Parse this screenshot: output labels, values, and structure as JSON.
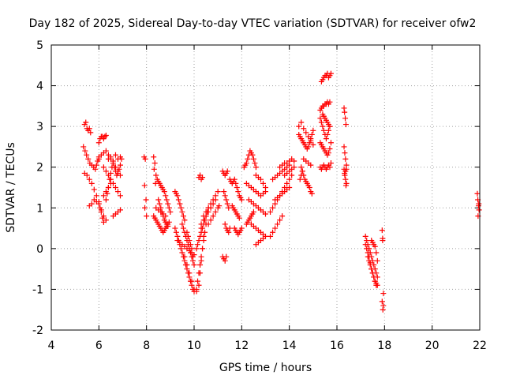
{
  "chart_data": {
    "type": "scatter",
    "title": "Day 182 of 2025, Sidereal Day-to-day VTEC variation (SDTVAR) for receiver ofw2",
    "xlabel": "GPS time / hours",
    "ylabel": "SDTVAR / TECUs",
    "xlim": [
      4,
      22
    ],
    "ylim": [
      -2,
      5
    ],
    "xticks": [
      "4",
      "6",
      "8",
      "10",
      "12",
      "14",
      "16",
      "18",
      "20",
      "22"
    ],
    "yticks": [
      "-2",
      "-1",
      "0",
      "1",
      "2",
      "3",
      "4",
      "5"
    ],
    "grid": true,
    "marker": "+",
    "colors": {
      "marker": "#ff0000",
      "grid": "#a0a0a0",
      "axis": "#000000"
    },
    "series": [
      {
        "x": [
          5.4,
          5.45,
          5.5,
          5.55,
          5.6,
          5.65,
          5.35,
          5.42,
          5.48,
          5.55,
          5.62,
          5.7,
          5.78,
          5.85,
          5.9,
          5.95,
          6.0,
          5.4,
          5.5,
          5.6,
          5.7,
          5.8,
          5.9,
          6.0,
          6.05,
          6.1,
          6.15,
          6.2,
          5.6,
          5.7,
          5.8,
          5.9,
          6.0,
          6.1,
          6.2,
          6.3,
          6.0,
          6.05,
          6.1,
          6.15,
          6.2,
          6.25,
          6.3,
          6.2,
          6.3,
          6.4,
          6.5,
          6.6,
          6.7,
          6.8,
          6.9,
          6.4,
          6.5,
          6.6,
          6.7,
          6.8,
          6.9,
          6.3,
          6.35,
          6.4,
          6.45,
          6.5,
          6.55,
          6.6,
          6.65,
          6.7,
          6.75,
          6.8,
          6.85,
          6.9,
          6.95,
          6.6,
          6.7,
          6.8,
          6.9,
          6.0,
          6.1,
          6.2,
          6.3,
          6.4,
          6.5,
          6.6,
          6.7,
          6.8,
          6.9,
          6.2,
          6.3,
          6.4,
          6.5
        ],
        "y": [
          3.05,
          3.1,
          2.95,
          2.9,
          2.95,
          2.85,
          2.5,
          2.4,
          2.3,
          2.2,
          2.1,
          2.05,
          2.0,
          1.95,
          2.05,
          2.15,
          2.25,
          1.85,
          1.8,
          1.7,
          1.6,
          1.45,
          1.3,
          1.15,
          1.0,
          0.9,
          0.75,
          0.65,
          1.05,
          1.1,
          1.2,
          1.15,
          1.1,
          0.95,
          0.8,
          0.7,
          2.6,
          2.7,
          2.75,
          2.75,
          2.7,
          2.75,
          2.78,
          2.0,
          1.9,
          1.8,
          1.7,
          1.6,
          1.5,
          1.4,
          1.3,
          2.2,
          2.25,
          2.15,
          2.3,
          2.2,
          2.25,
          1.2,
          1.35,
          1.5,
          1.7,
          1.85,
          2.0,
          2.1,
          2.0,
          1.9,
          1.8,
          1.85,
          1.95,
          2.05,
          2.2,
          0.8,
          0.85,
          0.9,
          0.95,
          2.2,
          2.3,
          2.35,
          2.4,
          2.3,
          2.2,
          2.1,
          2.0,
          1.9,
          1.8,
          1.3,
          1.4,
          1.5,
          1.6
        ]
      },
      {
        "x": [
          7.9,
          7.95,
          7.92,
          7.98,
          7.93,
          8.0,
          8.3,
          8.35,
          8.32,
          8.4,
          8.45,
          8.38,
          8.5,
          8.55,
          8.6,
          8.65,
          8.7,
          8.75,
          8.8,
          8.85,
          8.9,
          8.95,
          9.0,
          8.5,
          8.55,
          8.6,
          8.65,
          8.7,
          8.75,
          8.8,
          8.85,
          8.9,
          8.3,
          8.35,
          8.4,
          8.45,
          8.5,
          8.55,
          8.6,
          8.65,
          8.7,
          8.75,
          8.8,
          8.85,
          8.9,
          8.95,
          8.4,
          8.5,
          8.6,
          8.7,
          8.8,
          9.2,
          9.25,
          9.3,
          9.35,
          9.4,
          9.45,
          9.5,
          9.55,
          9.6,
          9.2,
          9.25,
          9.3,
          9.35,
          9.4,
          9.45,
          9.5,
          9.55,
          9.6,
          9.65,
          9.7,
          9.75,
          9.8,
          9.85,
          9.9,
          9.95,
          10.0,
          9.3,
          9.4,
          9.5,
          9.6,
          9.7,
          9.8,
          9.9,
          10.0,
          9.5,
          9.55,
          9.6,
          9.65,
          9.7,
          9.75,
          9.8,
          9.85,
          9.9,
          9.95,
          9.7,
          9.75,
          9.8,
          9.85,
          9.9,
          9.95,
          10.0,
          9.6,
          9.7,
          9.8,
          9.9,
          10.0,
          10.1,
          10.1,
          10.15,
          10.2,
          10.25,
          10.3,
          10.35,
          10.4,
          10.45,
          10.5,
          10.1,
          10.15,
          10.2,
          10.25,
          10.3,
          10.35,
          10.4,
          10.45,
          10.5,
          10.55,
          10.6,
          10.3,
          10.4,
          10.5,
          10.6,
          10.7,
          10.8,
          10.9,
          10.4,
          10.5,
          10.6,
          10.7,
          10.8,
          10.9,
          11.0,
          10.6,
          10.7,
          10.8,
          10.9,
          11.0,
          11.05,
          10.2,
          10.25,
          10.3,
          10.35,
          10.3,
          10.2,
          10.25,
          10.3,
          10.35,
          10.4
        ],
        "y": [
          2.25,
          2.2,
          1.55,
          1.2,
          1.0,
          0.8,
          2.25,
          2.1,
          1.95,
          1.8,
          1.7,
          1.6,
          1.65,
          1.6,
          1.55,
          1.5,
          1.45,
          1.4,
          1.3,
          1.2,
          1.1,
          1.0,
          0.9,
          1.2,
          1.1,
          1.0,
          0.9,
          0.8,
          0.7,
          0.65,
          0.6,
          0.55,
          0.8,
          0.75,
          0.7,
          0.65,
          0.6,
          0.55,
          0.5,
          0.45,
          0.4,
          0.45,
          0.5,
          0.55,
          0.6,
          0.65,
          1.0,
          0.95,
          0.9,
          0.85,
          0.8,
          1.4,
          1.35,
          1.3,
          1.2,
          1.1,
          1.0,
          0.9,
          0.8,
          0.7,
          0.5,
          0.4,
          0.3,
          0.2,
          0.1,
          0.0,
          -0.1,
          -0.2,
          -0.3,
          -0.4,
          -0.5,
          -0.6,
          -0.7,
          -0.8,
          -0.9,
          -1.0,
          -1.05,
          0.2,
          0.15,
          0.1,
          0.05,
          0.0,
          -0.05,
          -0.1,
          -0.15,
          0.6,
          0.5,
          0.4,
          0.3,
          0.2,
          0.1,
          0.0,
          -0.1,
          -0.2,
          -0.3,
          0.4,
          0.3,
          0.2,
          0.1,
          0.0,
          -0.2,
          -0.4,
          -0.2,
          -0.4,
          -0.6,
          -0.8,
          -1.0,
          -1.05,
          -1.0,
          -0.8,
          -0.6,
          -0.4,
          -0.2,
          0.0,
          0.2,
          0.4,
          0.6,
          0.0,
          0.1,
          0.2,
          0.3,
          0.4,
          0.5,
          0.6,
          0.7,
          0.8,
          0.9,
          1.0,
          0.6,
          0.7,
          0.8,
          0.9,
          1.0,
          1.1,
          1.2,
          0.8,
          0.9,
          1.0,
          1.1,
          1.2,
          1.3,
          1.4,
          0.6,
          0.7,
          0.8,
          0.9,
          1.0,
          1.05,
          1.75,
          1.8,
          1.7,
          1.75,
          0.5,
          -0.9,
          -0.6,
          -0.3,
          0.0,
          0.3
        ]
      },
      {
        "x": [
          11.2,
          11.25,
          11.3,
          11.35,
          11.4,
          11.25,
          11.3,
          11.35,
          11.4,
          11.45,
          11.3,
          11.35,
          11.4,
          11.45,
          11.5,
          11.2,
          11.25,
          11.3,
          11.35,
          11.5,
          11.55,
          11.6,
          11.65,
          11.7,
          11.75,
          11.8,
          11.85,
          11.9,
          11.95,
          12.0,
          11.6,
          11.65,
          11.7,
          11.75,
          11.8,
          11.85,
          11.9,
          11.7,
          11.75,
          11.8,
          11.85,
          11.9,
          11.95,
          12.0,
          12.1,
          12.15,
          12.2,
          12.25,
          12.3,
          12.35,
          12.4,
          12.45,
          12.5,
          12.55,
          12.6,
          12.2,
          12.3,
          12.4,
          12.5,
          12.6,
          12.7,
          12.8,
          12.9,
          13.0,
          12.3,
          12.4,
          12.5,
          12.6,
          12.7,
          12.8,
          12.9,
          13.0,
          12.4,
          12.5,
          12.6,
          12.7,
          12.8,
          12.9,
          13.0,
          12.6,
          12.7,
          12.8,
          12.9,
          12.6,
          12.7,
          12.8,
          12.9,
          13.0,
          12.2,
          12.25,
          12.3,
          12.35,
          12.4,
          12.45,
          12.5
        ],
        "y": [
          1.9,
          1.85,
          1.8,
          1.85,
          1.9,
          1.4,
          1.3,
          1.2,
          1.1,
          1.0,
          0.6,
          0.5,
          0.45,
          0.4,
          0.5,
          -0.2,
          -0.25,
          -0.3,
          -0.2,
          1.7,
          1.65,
          1.6,
          1.65,
          1.7,
          1.6,
          1.5,
          1.4,
          1.3,
          1.25,
          1.2,
          1.05,
          1.0,
          0.95,
          0.9,
          0.85,
          0.8,
          0.75,
          0.5,
          0.45,
          0.4,
          0.35,
          0.4,
          0.45,
          0.5,
          2.0,
          2.05,
          2.1,
          2.2,
          2.3,
          2.4,
          2.35,
          2.3,
          2.2,
          2.1,
          2.0,
          1.6,
          1.55,
          1.5,
          1.45,
          1.4,
          1.35,
          1.3,
          1.35,
          1.4,
          1.2,
          1.15,
          1.1,
          1.05,
          1.0,
          0.95,
          0.9,
          0.85,
          0.6,
          0.55,
          0.5,
          0.45,
          0.4,
          0.35,
          0.3,
          0.1,
          0.15,
          0.2,
          0.25,
          1.8,
          1.75,
          1.7,
          1.6,
          1.5,
          0.6,
          0.65,
          0.7,
          0.75,
          0.8,
          0.85,
          0.9
        ]
      },
      {
        "x": [
          13.2,
          13.3,
          13.4,
          13.5,
          13.6,
          13.7,
          13.8,
          13.9,
          14.0,
          14.1,
          13.3,
          13.4,
          13.5,
          13.6,
          13.7,
          13.8,
          13.9,
          14.0,
          13.4,
          13.5,
          13.6,
          13.7,
          13.8,
          13.9,
          14.0,
          13.2,
          13.3,
          13.4,
          13.5,
          13.6,
          13.7,
          13.6,
          13.7,
          13.8,
          13.9,
          14.0,
          14.1,
          14.2,
          13.8,
          13.9,
          14.0,
          14.1,
          14.2
        ],
        "y": [
          0.9,
          1.0,
          1.1,
          1.2,
          1.3,
          1.4,
          1.5,
          1.6,
          1.7,
          1.8,
          1.7,
          1.75,
          1.8,
          1.85,
          1.9,
          1.95,
          2.0,
          2.05,
          1.2,
          1.25,
          1.3,
          1.35,
          1.4,
          1.45,
          1.5,
          0.3,
          0.4,
          0.5,
          0.6,
          0.7,
          0.8,
          2.0,
          2.05,
          2.1,
          2.1,
          2.15,
          2.2,
          2.15,
          1.8,
          1.85,
          1.9,
          1.95,
          2.0
        ]
      },
      {
        "x": [
          14.4,
          14.45,
          14.5,
          14.55,
          14.6,
          14.65,
          14.7,
          14.75,
          14.8,
          14.85,
          14.9,
          14.95,
          15.0,
          14.4,
          14.5,
          14.6,
          14.7,
          14.8,
          14.9,
          15.0,
          14.5,
          14.55,
          14.6,
          14.65,
          14.7,
          14.75,
          14.8,
          14.85,
          14.9,
          14.95,
          14.6,
          14.7,
          14.8,
          14.9,
          14.45,
          14.5,
          14.55
        ],
        "y": [
          2.8,
          2.75,
          2.7,
          2.65,
          2.6,
          2.55,
          2.5,
          2.45,
          2.5,
          2.6,
          2.7,
          2.8,
          2.9,
          3.0,
          3.1,
          2.95,
          2.85,
          2.75,
          2.65,
          2.55,
          2.0,
          1.9,
          1.8,
          1.7,
          1.65,
          1.6,
          1.55,
          1.5,
          1.4,
          1.35,
          2.2,
          2.15,
          2.1,
          2.05,
          1.7,
          1.8,
          1.9
        ]
      },
      {
        "x": [
          15.3,
          15.35,
          15.4,
          15.45,
          15.5,
          15.55,
          15.6,
          15.65,
          15.7,
          15.35,
          15.4,
          15.45,
          15.5,
          15.55,
          15.6,
          15.65,
          15.7,
          15.75,
          15.3,
          15.35,
          15.4,
          15.45,
          15.5,
          15.55,
          15.6,
          15.65,
          15.7,
          15.75,
          15.3,
          15.35,
          15.4,
          15.45,
          15.5,
          15.55,
          15.6,
          15.65,
          15.7,
          15.3,
          15.35,
          15.4,
          15.45,
          15.5,
          15.55,
          15.6,
          15.65,
          15.7,
          15.75,
          15.4,
          15.45,
          15.5,
          15.55,
          15.6,
          15.65,
          15.7
        ],
        "y": [
          3.4,
          3.45,
          3.5,
          3.5,
          3.55,
          3.55,
          3.6,
          3.55,
          3.6,
          4.1,
          4.15,
          4.2,
          4.25,
          4.25,
          4.3,
          4.2,
          4.25,
          4.3,
          2.0,
          1.95,
          2.0,
          2.05,
          2.0,
          1.95,
          2.0,
          2.05,
          2.0,
          2.1,
          3.2,
          3.1,
          3.0,
          2.9,
          2.8,
          2.7,
          2.8,
          2.9,
          3.0,
          2.6,
          2.55,
          2.5,
          2.45,
          2.4,
          2.35,
          2.3,
          2.35,
          2.45,
          2.6,
          3.3,
          3.25,
          3.2,
          3.15,
          3.1,
          3.05,
          3.0
        ]
      },
      {
        "x": [
          16.3,
          16.32,
          16.35,
          16.38,
          16.3,
          16.33,
          16.36,
          16.4,
          16.3,
          16.33,
          16.36,
          16.4,
          16.32,
          16.36,
          16.38,
          16.4
        ],
        "y": [
          3.45,
          3.35,
          3.2,
          3.05,
          2.5,
          2.35,
          2.2,
          2.05,
          1.95,
          1.8,
          1.7,
          1.6,
          1.85,
          1.9,
          1.55,
          1.95
        ]
      },
      {
        "x": [
          17.2,
          17.25,
          17.3,
          17.35,
          17.4,
          17.45,
          17.5,
          17.55,
          17.6,
          17.65,
          17.7,
          17.2,
          17.25,
          17.3,
          17.35,
          17.4,
          17.45,
          17.5,
          17.55,
          17.6,
          17.65,
          17.7,
          17.3,
          17.35,
          17.4,
          17.45,
          17.5,
          17.55,
          17.6,
          17.65,
          17.45,
          17.5,
          17.55,
          17.6,
          17.65,
          17.7
        ],
        "y": [
          0.3,
          0.2,
          0.1,
          0.0,
          -0.1,
          -0.2,
          -0.3,
          -0.4,
          -0.5,
          -0.6,
          -0.7,
          0.1,
          0.0,
          -0.1,
          -0.2,
          -0.35,
          -0.5,
          -0.6,
          -0.7,
          -0.8,
          -0.85,
          -0.9,
          -0.2,
          -0.3,
          -0.4,
          -0.5,
          -0.6,
          -0.7,
          -0.8,
          -0.9,
          0.2,
          0.15,
          0.1,
          0.05,
          -0.1,
          -0.3
        ]
      },
      {
        "x": [
          17.9,
          17.92,
          17.95,
          17.95,
          17.93,
          17.9,
          17.92
        ],
        "y": [
          0.45,
          0.2,
          -1.1,
          -1.4,
          -1.5,
          -1.3,
          0.25
        ]
      },
      {
        "x": [
          21.9,
          21.92,
          21.95,
          21.97,
          21.93,
          21.96
        ],
        "y": [
          1.35,
          1.2,
          1.05,
          0.95,
          0.8,
          1.1
        ]
      }
    ]
  }
}
